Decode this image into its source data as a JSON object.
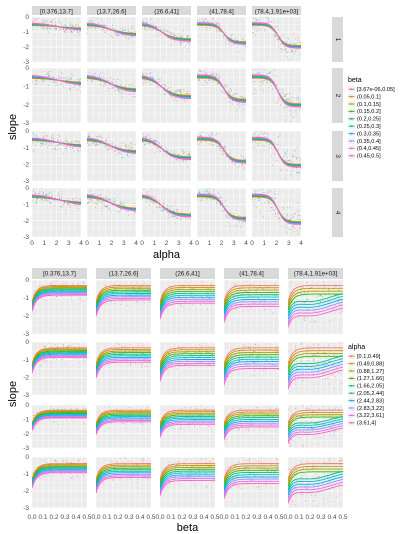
{
  "chart_data": [
    {
      "type": "scatter",
      "xlabel": "alpha",
      "ylabel": "slope",
      "xlim": [
        0,
        4
      ],
      "ylim": [
        -3,
        0
      ],
      "x_ticks": [
        "0",
        "1",
        "2",
        "3",
        "4"
      ],
      "y_ticks": [
        "-3",
        "-2",
        "-1",
        "0"
      ],
      "col_facets": [
        "[0.376,13.7]",
        "(13.7,26.6]",
        "(26.6,41]",
        "(41,78.4]",
        "(78.4,1.91e+03]"
      ],
      "row_facets": [
        "1",
        "2",
        "3",
        "4"
      ],
      "legend": {
        "title": "beta",
        "position": "right",
        "entries": [
          "[3.67e-06,0.05]",
          "(0.05,0.1]",
          "(0.1,0.15]",
          "(0.15,0.2]",
          "(0.2,0.25]",
          "(0.25,0.3]",
          "(0.3,0.35]",
          "(0.35,0.4]",
          "(0.4,0.45]",
          "(0.45,0.5]"
        ]
      },
      "grid": true,
      "series_colors": [
        "#f8766d",
        "#d89000",
        "#a3a500",
        "#39b600",
        "#00bf7d",
        "#00bfc4",
        "#00b0f6",
        "#9590ff",
        "#e76bf3",
        "#ff62bc"
      ]
    },
    {
      "type": "scatter",
      "xlabel": "beta",
      "ylabel": "slope",
      "xlim": [
        0,
        0.5
      ],
      "ylim": [
        -3,
        0
      ],
      "x_ticks": [
        "0.0",
        "0.1",
        "0.2",
        "0.3",
        "0.4",
        "0.5"
      ],
      "y_ticks": [
        "-3",
        "-2",
        "-1",
        "0"
      ],
      "col_facets": [
        "[0.376,13.7]",
        "(13.7,26.6]",
        "(26.6,41]",
        "(41,78.4]",
        "(78.4,1.91e+03]"
      ],
      "row_facets": [
        "1",
        "2",
        "3",
        "4"
      ],
      "legend": {
        "title": "alpha",
        "position": "right",
        "entries": [
          "[0.1,0.49]",
          "(0.49,0.88]",
          "(0.88,1.27]",
          "(1.27,1.66]",
          "(1.66,2.05]",
          "(2.05,2.44]",
          "(2.44,2.83]",
          "(2.83,3.22]",
          "(3.22,3.61]",
          "(3.61,4]"
        ]
      },
      "grid": true,
      "series_colors": [
        "#f8766d",
        "#d89000",
        "#a3a500",
        "#39b600",
        "#00bf7d",
        "#00bfc4",
        "#00b0f6",
        "#9590ff",
        "#e76bf3",
        "#ff62bc"
      ]
    }
  ]
}
